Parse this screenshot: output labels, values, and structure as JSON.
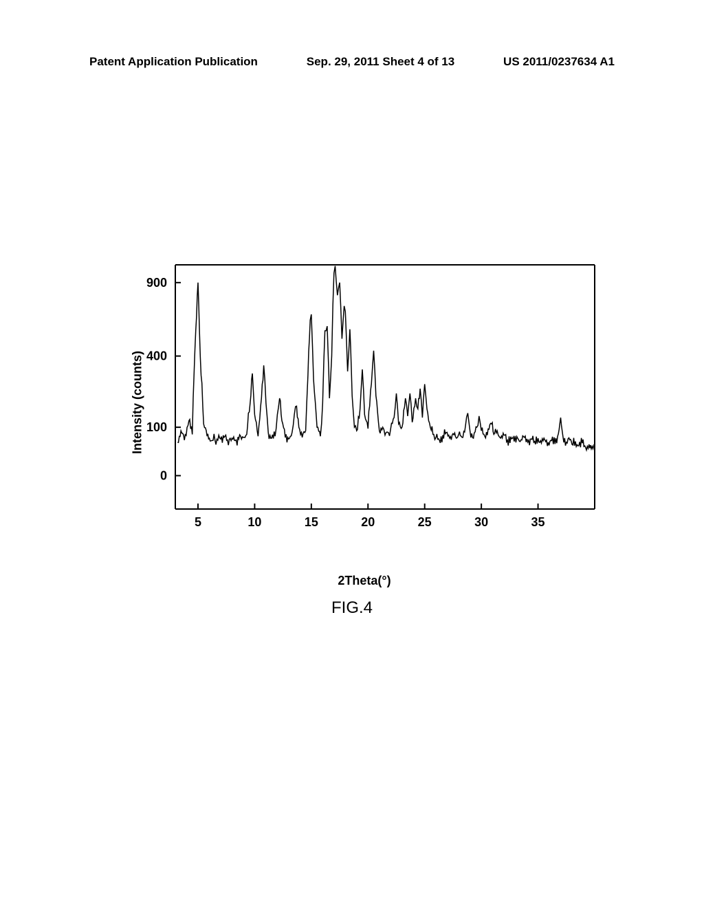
{
  "header": {
    "left": "Patent Application Publication",
    "center": "Sep. 29, 2011  Sheet 4 of 13",
    "right": "US 2011/0237634 A1"
  },
  "figure": {
    "caption": "FIG.4",
    "chart": {
      "type": "line",
      "xlabel": "2Theta(°)",
      "ylabel": "Intensity (counts)",
      "xlim": [
        3,
        40
      ],
      "ylim": [
        -20,
        1050
      ],
      "xticks": [
        5,
        10,
        15,
        20,
        25,
        30,
        35
      ],
      "yticks": [
        0,
        100,
        400,
        900
      ],
      "yscale": "sqrt",
      "line_color": "#000000",
      "line_width": 1.5,
      "background_color": "#ffffff",
      "axis_color": "#000000",
      "axis_width": 2,
      "tick_fontsize": 18,
      "tick_fontweight": "bold",
      "label_fontsize": 18,
      "label_fontweight": "bold",
      "data": [
        [
          3.2,
          60
        ],
        [
          3.5,
          90
        ],
        [
          3.8,
          65
        ],
        [
          4.2,
          120
        ],
        [
          4.5,
          80
        ],
        [
          4.8,
          550
        ],
        [
          5.0,
          900
        ],
        [
          5.2,
          400
        ],
        [
          5.5,
          110
        ],
        [
          5.8,
          75
        ],
        [
          6.0,
          70
        ],
        [
          6.5,
          65
        ],
        [
          7.0,
          68
        ],
        [
          7.3,
          72
        ],
        [
          7.6,
          66
        ],
        [
          8.0,
          70
        ],
        [
          8.3,
          64
        ],
        [
          8.6,
          68
        ],
        [
          9.0,
          72
        ],
        [
          9.3,
          80
        ],
        [
          9.6,
          180
        ],
        [
          9.8,
          310
        ],
        [
          10.0,
          140
        ],
        [
          10.3,
          75
        ],
        [
          10.6,
          200
        ],
        [
          10.8,
          350
        ],
        [
          11.0,
          180
        ],
        [
          11.2,
          85
        ],
        [
          11.5,
          70
        ],
        [
          11.8,
          75
        ],
        [
          12.0,
          140
        ],
        [
          12.2,
          200
        ],
        [
          12.4,
          120
        ],
        [
          12.7,
          72
        ],
        [
          13.0,
          68
        ],
        [
          13.3,
          85
        ],
        [
          13.5,
          140
        ],
        [
          13.7,
          170
        ],
        [
          13.9,
          100
        ],
        [
          14.2,
          72
        ],
        [
          14.5,
          90
        ],
        [
          14.7,
          300
        ],
        [
          14.9,
          620
        ],
        [
          15.0,
          660
        ],
        [
          15.2,
          280
        ],
        [
          15.5,
          100
        ],
        [
          15.8,
          75
        ],
        [
          16.0,
          180
        ],
        [
          16.2,
          550
        ],
        [
          16.4,
          580
        ],
        [
          16.6,
          200
        ],
        [
          16.8,
          400
        ],
        [
          17.0,
          980
        ],
        [
          17.1,
          1040
        ],
        [
          17.3,
          800
        ],
        [
          17.5,
          900
        ],
        [
          17.7,
          500
        ],
        [
          17.9,
          720
        ],
        [
          18.0,
          680
        ],
        [
          18.2,
          320
        ],
        [
          18.4,
          560
        ],
        [
          18.6,
          210
        ],
        [
          18.8,
          100
        ],
        [
          19.0,
          90
        ],
        [
          19.3,
          160
        ],
        [
          19.5,
          330
        ],
        [
          19.7,
          140
        ],
        [
          20.0,
          96
        ],
        [
          20.3,
          260
        ],
        [
          20.5,
          430
        ],
        [
          20.7,
          210
        ],
        [
          21.0,
          90
        ],
        [
          21.3,
          100
        ],
        [
          21.5,
          78
        ],
        [
          21.8,
          85
        ],
        [
          22.0,
          95
        ],
        [
          22.3,
          130
        ],
        [
          22.5,
          220
        ],
        [
          22.7,
          110
        ],
        [
          23.0,
          100
        ],
        [
          23.3,
          200
        ],
        [
          23.5,
          135
        ],
        [
          23.7,
          220
        ],
        [
          23.9,
          115
        ],
        [
          24.2,
          200
        ],
        [
          24.4,
          160
        ],
        [
          24.6,
          240
        ],
        [
          24.8,
          130
        ],
        [
          25.0,
          260
        ],
        [
          25.2,
          160
        ],
        [
          25.5,
          100
        ],
        [
          25.8,
          80
        ],
        [
          26.0,
          72
        ],
        [
          26.3,
          65
        ],
        [
          26.6,
          78
        ],
        [
          26.9,
          85
        ],
        [
          27.2,
          70
        ],
        [
          27.5,
          82
        ],
        [
          27.8,
          70
        ],
        [
          28.0,
          80
        ],
        [
          28.3,
          72
        ],
        [
          28.6,
          105
        ],
        [
          28.8,
          145
        ],
        [
          29.0,
          90
        ],
        [
          29.3,
          70
        ],
        [
          29.6,
          100
        ],
        [
          29.8,
          135
        ],
        [
          30.0,
          90
        ],
        [
          30.3,
          75
        ],
        [
          30.6,
          95
        ],
        [
          30.9,
          110
        ],
        [
          31.1,
          80
        ],
        [
          31.4,
          90
        ],
        [
          31.7,
          70
        ],
        [
          32.0,
          78
        ],
        [
          32.3,
          65
        ],
        [
          32.6,
          74
        ],
        [
          32.9,
          62
        ],
        [
          33.2,
          70
        ],
        [
          33.5,
          66
        ],
        [
          33.8,
          72
        ],
        [
          34.1,
          60
        ],
        [
          34.4,
          68
        ],
        [
          34.7,
          62
        ],
        [
          35.0,
          70
        ],
        [
          35.3,
          58
        ],
        [
          35.6,
          66
        ],
        [
          35.9,
          60
        ],
        [
          36.2,
          64
        ],
        [
          36.5,
          56
        ],
        [
          36.8,
          82
        ],
        [
          37.0,
          130
        ],
        [
          37.2,
          75
        ],
        [
          37.5,
          60
        ],
        [
          37.8,
          66
        ],
        [
          38.0,
          55
        ],
        [
          38.3,
          62
        ],
        [
          38.6,
          52
        ],
        [
          38.9,
          58
        ],
        [
          39.2,
          48
        ],
        [
          39.5,
          55
        ],
        [
          39.7,
          45
        ],
        [
          40.0,
          50
        ]
      ]
    }
  }
}
